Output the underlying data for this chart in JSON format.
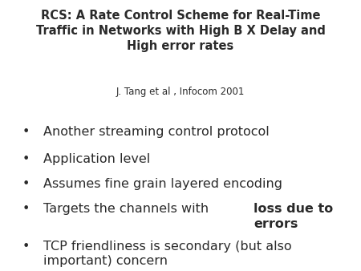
{
  "title": "RCS: A Rate Control Scheme for Real-Time\nTraffic in Networks with High B X Delay and\nHigh error rates",
  "subtitle": "J. Tang et al , Infocom 2001",
  "bg_color": "#ffffff",
  "text_color": "#2a2a2a",
  "title_fontsize": 10.5,
  "subtitle_fontsize": 8.5,
  "bullet_fontsize": 11.5,
  "bullet_char": "•",
  "bullets_normal": [
    "Another streaming control protocol",
    "Application level",
    "Assumes fine grain layered encoding",
    "Targets the channels with ",
    "TCP friendliness is secondary (but also\nimportant) concern"
  ],
  "bullets_bold": [
    "",
    "",
    "",
    "loss due to\nerrors",
    ""
  ]
}
